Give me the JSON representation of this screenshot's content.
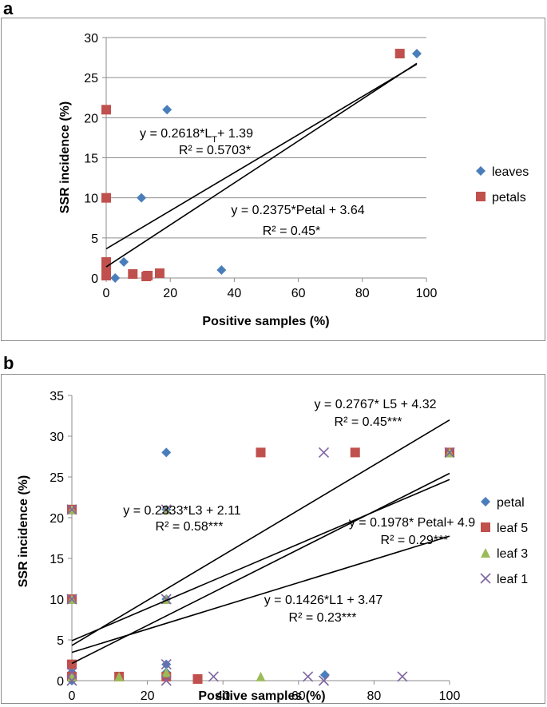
{
  "panels": [
    {
      "label": "a",
      "chart_data": {
        "type": "scatter",
        "xlabel": "Positive samples (%)",
        "ylabel": "SSR incidence (%)",
        "xlim": [
          0,
          100
        ],
        "ylim": [
          0,
          30
        ],
        "xticks": [
          0,
          20,
          40,
          60,
          80,
          100
        ],
        "yticks": [
          0,
          5,
          10,
          15,
          20,
          25,
          30
        ],
        "grid": "horizontal",
        "legend_position": "right",
        "series": [
          {
            "name": "leaves",
            "marker": "diamond",
            "color": "#4a7ebb",
            "points": [
              [
                2.8,
                0
              ],
              [
                5.5,
                2
              ],
              [
                11,
                10
              ],
              [
                19,
                21
              ],
              [
                36,
                1
              ],
              [
                97,
                28
              ]
            ]
          },
          {
            "name": "petals",
            "marker": "square",
            "color": "#c0504d",
            "points": [
              [
                0,
                21
              ],
              [
                0,
                10
              ],
              [
                0,
                2
              ],
              [
                0,
                1
              ],
              [
                0,
                0.3
              ],
              [
                8.3,
                0.5
              ],
              [
                12.5,
                0.2
              ],
              [
                13,
                0.3
              ],
              [
                16.7,
                0.6
              ],
              [
                91.7,
                28
              ]
            ]
          }
        ],
        "trendlines": [
          {
            "slope": 0.2618,
            "intercept": 1.39,
            "x_range": [
              0,
              97
            ]
          },
          {
            "slope": 0.2375,
            "intercept": 3.64,
            "x_range": [
              0,
              97
            ]
          }
        ],
        "annotations": [
          {
            "id": "eqA1a",
            "parts": [
              [
                "y = 0.2618*L",
                ""
              ],
              [
                "T",
                "sub"
              ],
              [
                "+ 1.39",
                ""
              ]
            ]
          },
          {
            "id": "eqA1b",
            "text": "R² = 0.5703*"
          },
          {
            "id": "eqA2a",
            "text": "y = 0.2375*Petal + 3.64"
          },
          {
            "id": "eqA2b",
            "text": "R² = 0.45*"
          }
        ]
      }
    },
    {
      "label": "b",
      "chart_data": {
        "type": "scatter",
        "xlabel": "Positive samples (%)",
        "ylabel": "SSR incidence (%)",
        "xlim": [
          0,
          100
        ],
        "ylim": [
          0,
          35
        ],
        "xticks": [
          0,
          20,
          40,
          60,
          80,
          100
        ],
        "yticks": [
          0,
          5,
          10,
          15,
          20,
          25,
          30,
          35
        ],
        "grid": "none",
        "legend_position": "right",
        "series": [
          {
            "name": "petal",
            "marker": "diamond",
            "color": "#4a7ebb",
            "points": [
              [
                0,
                21
              ],
              [
                0,
                10
              ],
              [
                0,
                2
              ],
              [
                0,
                1
              ],
              [
                0,
                0.5
              ],
              [
                0,
                0
              ],
              [
                25,
                28
              ],
              [
                25,
                21
              ],
              [
                25,
                10
              ],
              [
                25,
                2
              ],
              [
                25,
                1
              ],
              [
                25,
                0.5
              ],
              [
                67,
                0.7
              ],
              [
                100,
                28
              ]
            ]
          },
          {
            "name": "leaf 5",
            "marker": "square",
            "color": "#c0504d",
            "points": [
              [
                0,
                21
              ],
              [
                0,
                10
              ],
              [
                0,
                2
              ],
              [
                0,
                0.5
              ],
              [
                12.5,
                0.5
              ],
              [
                25,
                0.5
              ],
              [
                33.3,
                0.2
              ],
              [
                50,
                28
              ],
              [
                75,
                28
              ],
              [
                100,
                28
              ]
            ]
          },
          {
            "name": "leaf 3",
            "marker": "triangle",
            "color": "#9bbb59",
            "points": [
              [
                0,
                21
              ],
              [
                0,
                10
              ],
              [
                0,
                0.5
              ],
              [
                12.5,
                0.5
              ],
              [
                25,
                21
              ],
              [
                25,
                10
              ],
              [
                25,
                1
              ],
              [
                50,
                0.5
              ],
              [
                100,
                28
              ]
            ]
          },
          {
            "name": "leaf 1",
            "marker": "x",
            "color": "#8064a2",
            "points": [
              [
                0,
                21
              ],
              [
                0,
                10
              ],
              [
                0,
                1
              ],
              [
                0,
                0
              ],
              [
                25,
                21
              ],
              [
                25,
                10
              ],
              [
                25,
                2
              ],
              [
                25,
                0
              ],
              [
                37.5,
                0.5
              ],
              [
                62.5,
                0.5
              ],
              [
                66.7,
                28
              ],
              [
                66.7,
                0
              ],
              [
                87.5,
                0.5
              ],
              [
                100,
                28
              ]
            ]
          }
        ],
        "trendlines": [
          {
            "slope": 0.2767,
            "intercept": 4.32,
            "x_range": [
              0,
              100
            ]
          },
          {
            "slope": 0.2333,
            "intercept": 2.11,
            "x_range": [
              0,
              100
            ]
          },
          {
            "slope": 0.1978,
            "intercept": 4.9,
            "x_range": [
              0,
              100
            ]
          },
          {
            "slope": 0.1426,
            "intercept": 3.47,
            "x_range": [
              0,
              100
            ]
          }
        ],
        "annotations": [
          {
            "id": "eqB1a",
            "text": "y = 0.2767* L5 + 4.32"
          },
          {
            "id": "eqB1b",
            "text": "R² = 0.45***"
          },
          {
            "id": "eqB2a",
            "text": "y = 0.2333*L3 + 2.11"
          },
          {
            "id": "eqB2b",
            "text": "R² = 0.58***"
          },
          {
            "id": "eqB3a",
            "text": "y = 0.1978* Petal+ 4.9"
          },
          {
            "id": "eqB3b",
            "text": "R² = 0.29***"
          },
          {
            "id": "eqB4a",
            "text": "y = 0.1426*L1 + 3.47"
          },
          {
            "id": "eqB4b",
            "text": "R² = 0.23***"
          }
        ]
      }
    }
  ]
}
